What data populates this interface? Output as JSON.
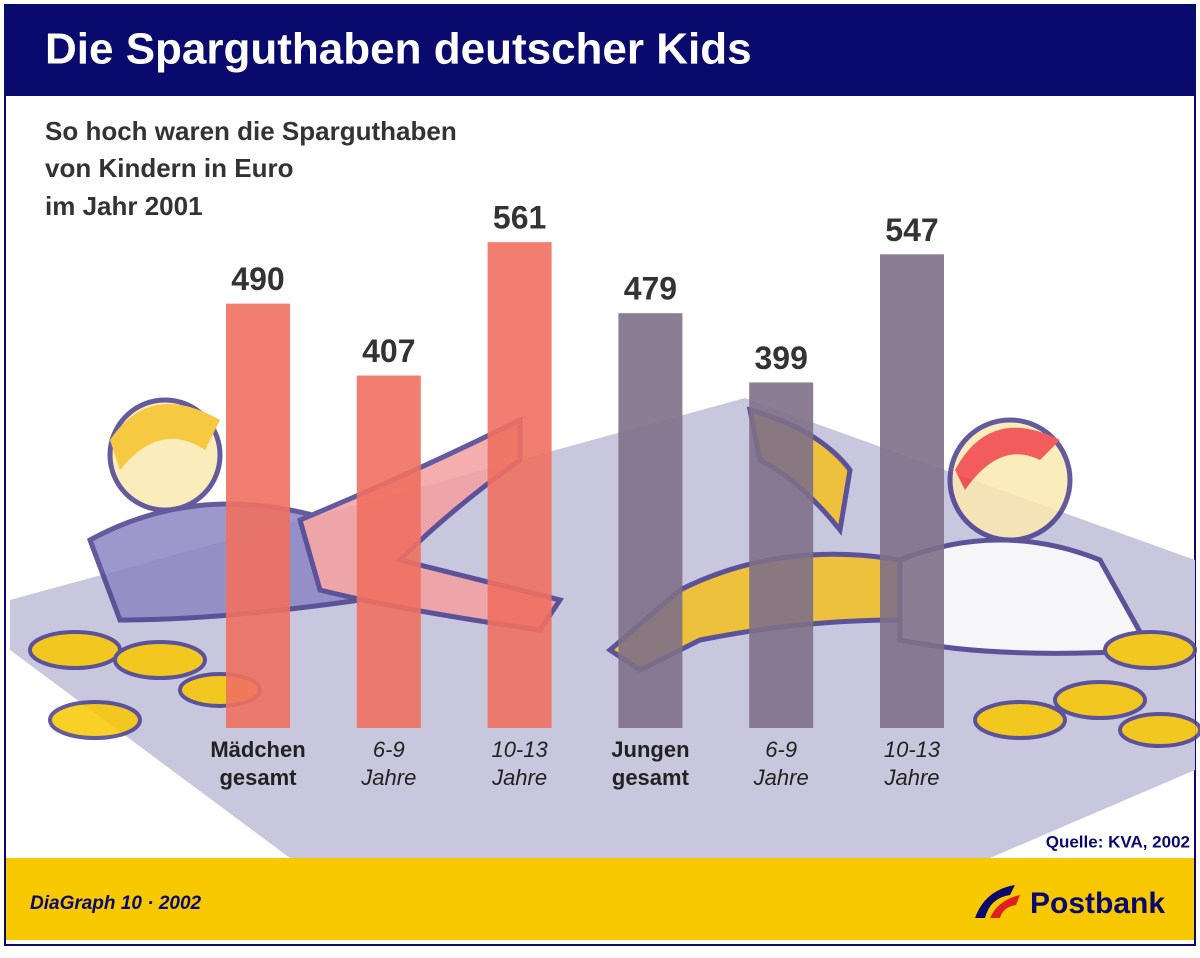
{
  "chart_data": {
    "type": "bar",
    "title": "Die Sparguthaben deutscher Kids",
    "subtitle": [
      "So hoch waren die Sparguthaben",
      "von Kindern in Euro",
      "im Jahr 2001"
    ],
    "categories": [
      [
        "Mädchen",
        "gesamt"
      ],
      [
        "6-9",
        "Jahre"
      ],
      [
        "10-13",
        "Jahre"
      ],
      [
        "Jungen",
        "gesamt"
      ],
      [
        "6-9",
        "Jahre"
      ],
      [
        "10-13",
        "Jahre"
      ]
    ],
    "values": [
      490,
      407,
      561,
      479,
      399,
      547
    ],
    "colors": [
      "#f07060",
      "#f07060",
      "#f07060",
      "#7e7088",
      "#7e7088",
      "#7e7088"
    ],
    "source": "Quelle: KVA, 2002",
    "footer": "DiaGraph 10 · 2002",
    "brand": "Postbank"
  }
}
